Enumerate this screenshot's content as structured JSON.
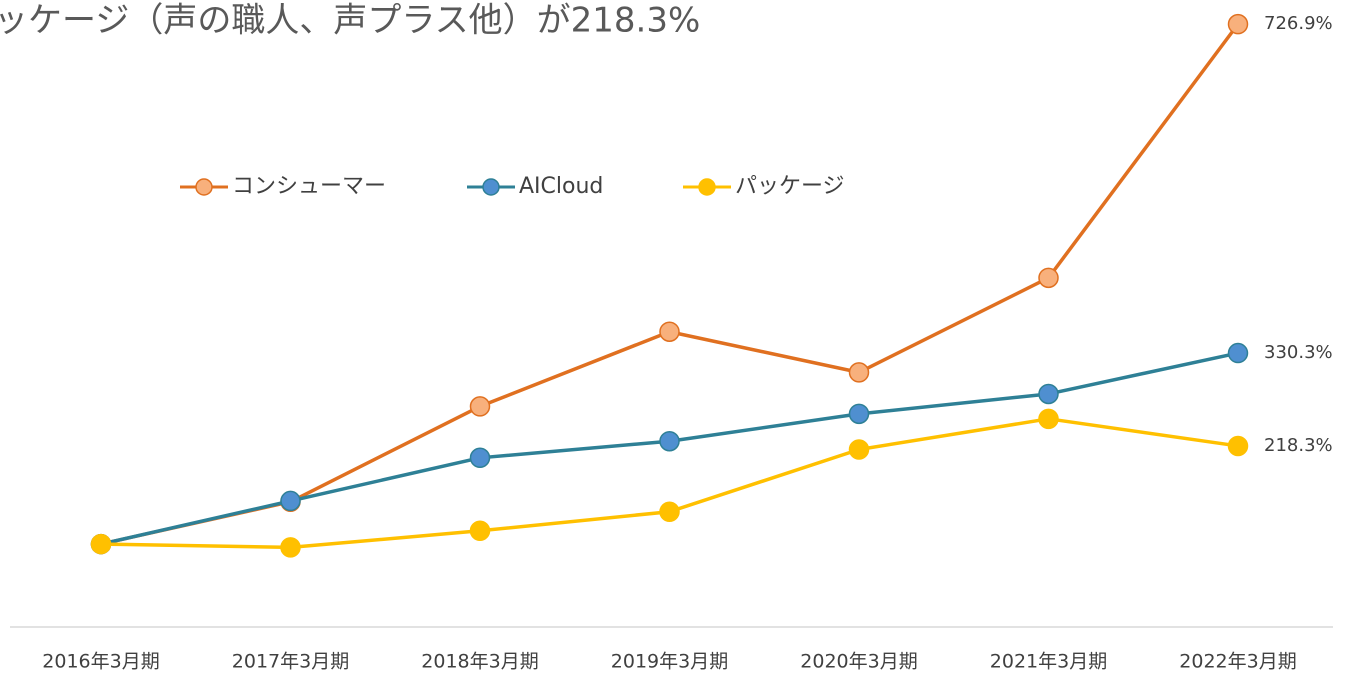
{
  "chart_data": {
    "type": "line",
    "title": "ッケージ（声の職人、声プラス他）が218.3%",
    "categories": [
      "2016年3月期",
      "2017年3月期",
      "2018年3月期",
      "2019年3月期",
      "2020年3月期",
      "2021年3月期",
      "2022年3月期"
    ],
    "series": [
      {
        "name": "コンシューマー",
        "color": "#e07020",
        "marker_fill": "#f8b07c",
        "values": [
          100,
          151,
          266,
          356,
          307,
          421,
          726.9
        ],
        "value_labels": [
          null,
          null,
          null,
          null,
          null,
          null,
          "726.9%"
        ]
      },
      {
        "name": "AICloud",
        "color": "#2e8096",
        "marker_fill": "#4f8fd0",
        "values": [
          100,
          152,
          204,
          224,
          257,
          281,
          330.3
        ],
        "value_labels": [
          null,
          null,
          null,
          null,
          null,
          null,
          "330.3%"
        ]
      },
      {
        "name": "パッケージ",
        "color": "#ffc000",
        "marker_fill": "#ffc000",
        "values": [
          100,
          96,
          116,
          139,
          214,
          251,
          218.3
        ],
        "value_labels": [
          null,
          null,
          null,
          null,
          null,
          null,
          "218.3%"
        ]
      }
    ],
    "ylim": [
      0,
      756
    ],
    "legend": "top"
  }
}
